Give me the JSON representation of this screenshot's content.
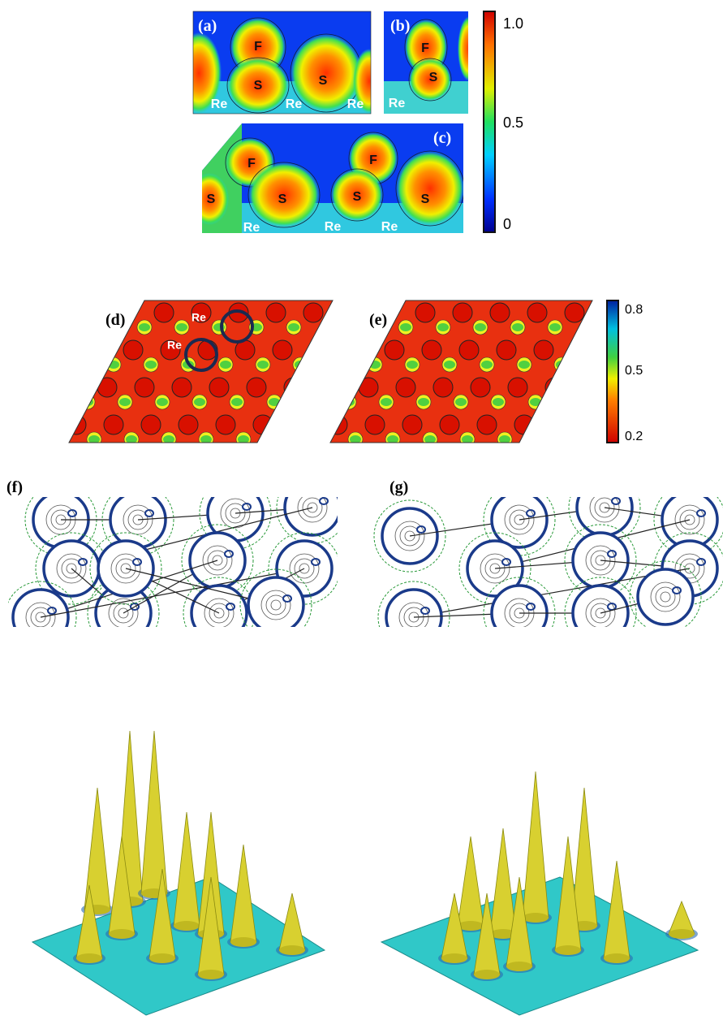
{
  "panels": [
    {
      "label": "(a)",
      "atoms": [
        "F",
        "S",
        "S",
        "Re",
        "Re",
        "Re"
      ]
    },
    {
      "label": "(b)",
      "atoms": [
        "F",
        "S",
        "Re"
      ]
    },
    {
      "label": "(c)",
      "atoms": [
        "F",
        "F",
        "S",
        "S",
        "S",
        "S",
        "Re",
        "Re",
        "Re"
      ]
    },
    {
      "label": "(d)",
      "atoms": [
        "Re",
        "Re"
      ]
    },
    {
      "label": "(e)"
    },
    {
      "label": "(f)"
    },
    {
      "label": "(g)"
    }
  ],
  "colorbars": [
    {
      "ticks": [
        "1.0",
        "0.5",
        "0"
      ]
    },
    {
      "ticks": [
        "0.8",
        "0.5",
        "0.2"
      ]
    }
  ]
}
